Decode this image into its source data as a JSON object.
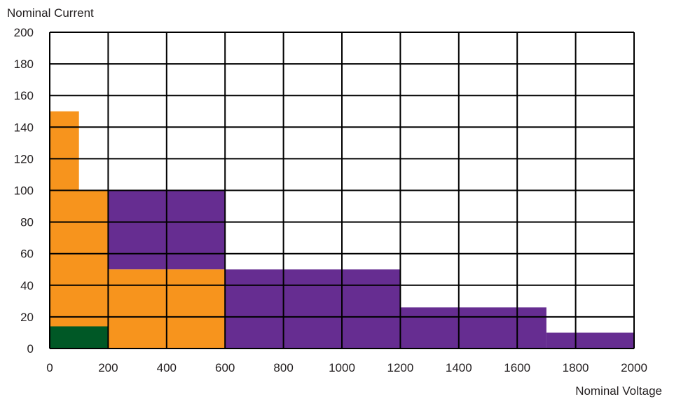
{
  "chart_data": {
    "type": "area",
    "xlabel": "Nominal Voltage",
    "ylabel": "Nominal Current",
    "xlim": [
      0,
      2000
    ],
    "ylim": [
      0,
      200
    ],
    "x_ticks": [
      "0",
      "200",
      "400",
      "600",
      "800",
      "1000",
      "1200",
      "1400",
      "1600",
      "1800",
      "2000"
    ],
    "y_ticks": [
      "0",
      "20",
      "40",
      "60",
      "80",
      "100",
      "120",
      "140",
      "160",
      "180",
      "200"
    ],
    "grid": true,
    "colors": {
      "orange": "#f7941d",
      "purple": "#662d91",
      "green": "#005826",
      "grid": "#000000"
    },
    "regions": [
      {
        "color_key": "purple",
        "x0": 200,
        "x1": 600,
        "y0": 50,
        "y1": 100
      },
      {
        "color_key": "purple",
        "x0": 600,
        "x1": 1200,
        "y0": 0,
        "y1": 50
      },
      {
        "color_key": "purple",
        "x0": 1200,
        "x1": 1700,
        "y0": 0,
        "y1": 26
      },
      {
        "color_key": "purple",
        "x0": 1700,
        "x1": 2000,
        "y0": 0,
        "y1": 10
      },
      {
        "color_key": "orange",
        "x0": 0,
        "x1": 100,
        "y0": 100,
        "y1": 150
      },
      {
        "color_key": "orange",
        "x0": 0,
        "x1": 200,
        "y0": 0,
        "y1": 100
      },
      {
        "color_key": "orange",
        "x0": 200,
        "x1": 600,
        "y0": 0,
        "y1": 50
      },
      {
        "color_key": "green",
        "x0": 0,
        "x1": 200,
        "y0": 0,
        "y1": 14
      }
    ]
  }
}
